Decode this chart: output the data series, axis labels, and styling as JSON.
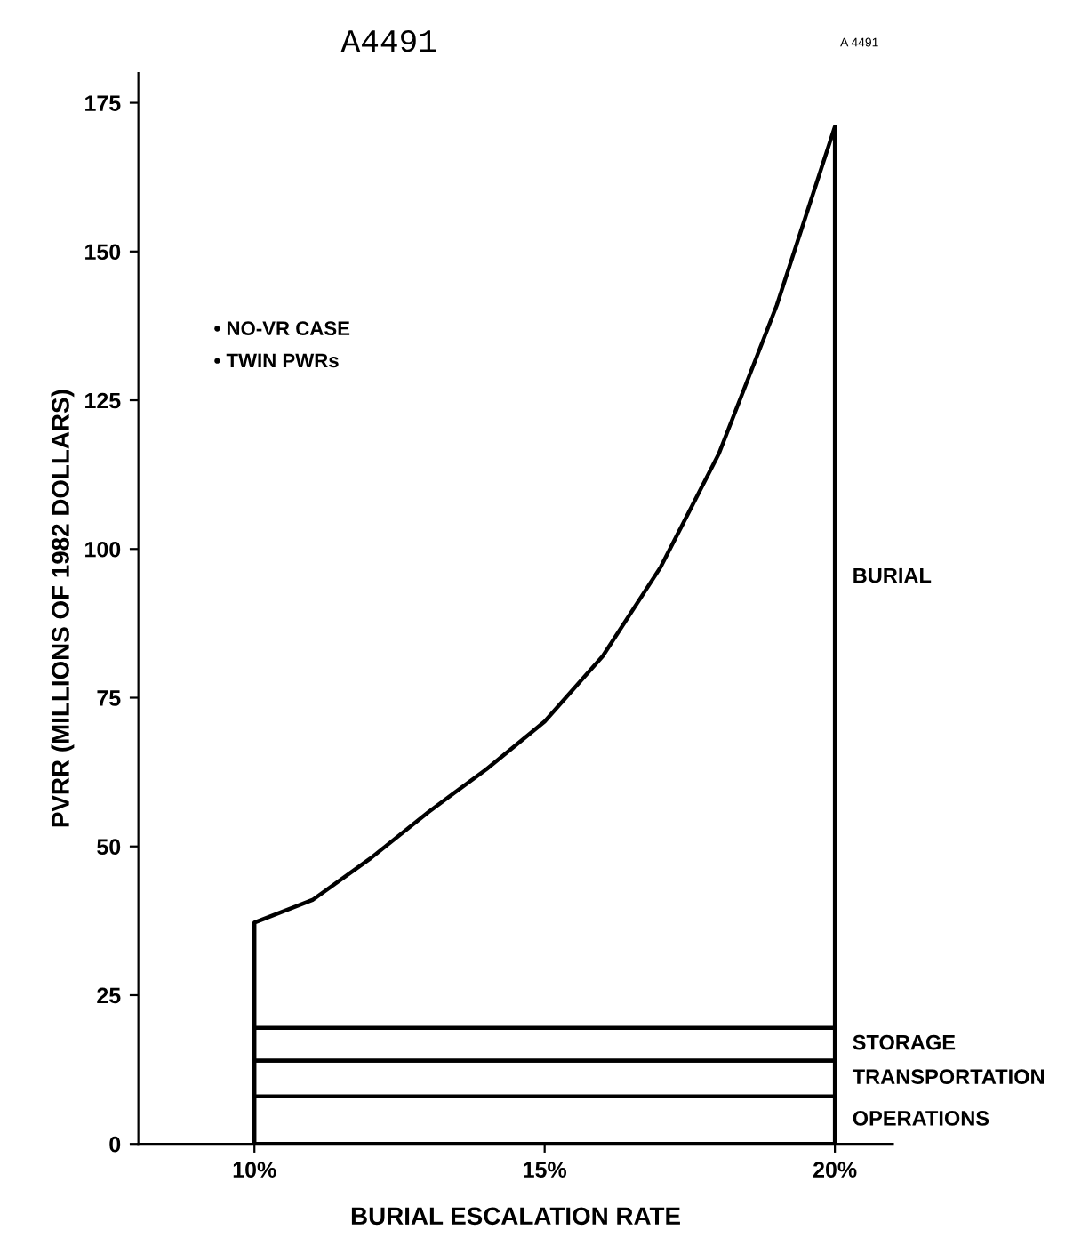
{
  "chart_data": {
    "type": "area",
    "stacked": true,
    "title": "A4491",
    "xlabel": "BURIAL ESCALATION RATE",
    "ylabel": "PVRR (MILLIONS OF 1982 DOLLARS)",
    "x": [
      10,
      11,
      12,
      13,
      14,
      15,
      16,
      17,
      18,
      19,
      20
    ],
    "series": [
      {
        "name": "OPERATIONS",
        "color": "#000000",
        "values": [
          8,
          8,
          8,
          8,
          8,
          8,
          8,
          8,
          8,
          8,
          8
        ]
      },
      {
        "name": "TRANSPORTATION",
        "color": "#000000",
        "values": [
          6,
          6,
          6,
          6,
          6,
          6,
          6,
          6,
          6,
          6,
          6
        ]
      },
      {
        "name": "STORAGE",
        "color": "#000000",
        "values": [
          5.5,
          5.5,
          5.5,
          5.5,
          5.5,
          5.5,
          5.5,
          5.5,
          5.5,
          5.5,
          5.5
        ]
      },
      {
        "name": "BURIAL",
        "color": "#000000",
        "values": [
          17.7,
          21.5,
          28.5,
          36.3,
          43.5,
          51.5,
          62.5,
          77.5,
          96.5,
          121.5,
          151.5
        ]
      }
    ],
    "xlim": [
      8,
      21
    ],
    "xticks": [
      {
        "value": 10,
        "label": "10%"
      },
      {
        "value": 15,
        "label": "15%"
      },
      {
        "value": 20,
        "label": "20%"
      }
    ],
    "ylim": [
      0,
      180
    ],
    "yticks": [
      0,
      25,
      50,
      75,
      100,
      125,
      150,
      175
    ],
    "annotations": [
      "A 4491",
      "• NO-VR CASE",
      "• TWIN PWRs"
    ],
    "grid": false,
    "legend": false
  }
}
